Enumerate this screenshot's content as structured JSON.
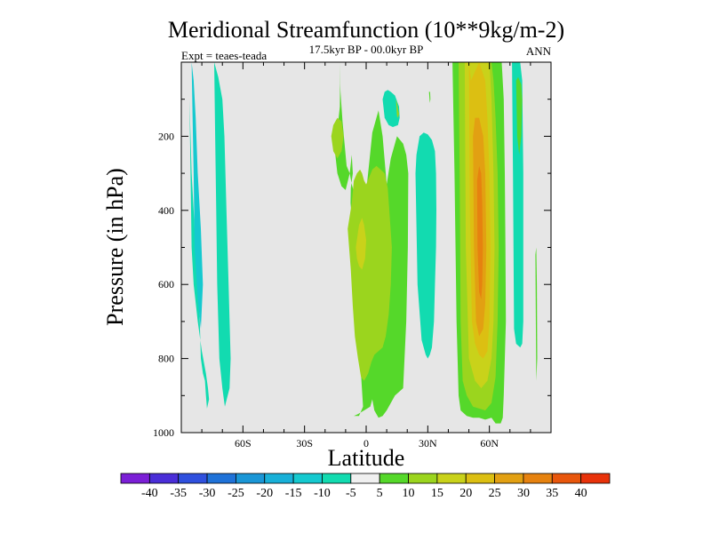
{
  "chart_data": {
    "type": "heatmap",
    "title": "Meridional Streamfunction (10**9kg/m-2)",
    "subtitle": "17.5kyr BP - 00.0kyr BP",
    "left_annotation": "Expt = teaes-teada",
    "right_annotation": "ANN",
    "xlabel": "Latitude",
    "ylabel": "Pressure (in hPa)",
    "x_range": [
      -90,
      90
    ],
    "y_range": [
      0,
      1000
    ],
    "y_reversed": true,
    "x_ticks": [
      {
        "value": -60,
        "label": "60S"
      },
      {
        "value": -30,
        "label": "30S"
      },
      {
        "value": 0,
        "label": "0"
      },
      {
        "value": 30,
        "label": "30N"
      },
      {
        "value": 60,
        "label": "60N"
      }
    ],
    "y_ticks": [
      {
        "value": 200,
        "label": "200"
      },
      {
        "value": 400,
        "label": "400"
      },
      {
        "value": 600,
        "label": "600"
      },
      {
        "value": 800,
        "label": "800"
      },
      {
        "value": 1000,
        "label": "1000"
      }
    ],
    "colorbar": {
      "boundaries": [
        "-40",
        "-35",
        "-30",
        "-25",
        "-20",
        "-15",
        "-10",
        "-5",
        "5",
        "10",
        "15",
        "20",
        "25",
        "30",
        "35",
        "40"
      ],
      "colors": [
        "#7b1fd6",
        "#4a2ed8",
        "#2f50de",
        "#1f72d8",
        "#1a96d6",
        "#18b0d8",
        "#15c9cf",
        "#12dbb0",
        "#f0f0f0",
        "#55d82a",
        "#9bd51e",
        "#c9d21a",
        "#dcbf12",
        "#e2a012",
        "#e6820f",
        "#e8560c",
        "#e8320a"
      ]
    },
    "background_color": "#e6e6e6",
    "contours": [
      {
        "level": -10,
        "color": "#12dbb0",
        "desc": "SH cell 80S-60S",
        "lat": [
          -87,
          -86,
          -85.5,
          -85,
          -84,
          -82,
          -80,
          -78,
          -77,
          -76.5,
          -77.5,
          -78,
          -78.5,
          -79.5,
          -80.5,
          -81,
          -82,
          -83,
          -84,
          -85,
          -86,
          -87
        ],
        "p": [
          0,
          100,
          300,
          500,
          600,
          700,
          780,
          840,
          880,
          910,
          935,
          900,
          860,
          840,
          800,
          700,
          600,
          500,
          400,
          300,
          100,
          0
        ]
      },
      {
        "level": -10,
        "color": "#12dbb0",
        "desc": "SH cell 70S-62S",
        "lat": [
          -74,
          -73.5,
          -73,
          -72.5,
          -72,
          -71.5,
          -70,
          -68.8,
          -68.6,
          -68.8,
          -66.5,
          -66,
          -67,
          -68,
          -69,
          -70,
          -72,
          -74
        ],
        "p": [
          0,
          200,
          400,
          600,
          700,
          800,
          880,
          930,
          955,
          930,
          880,
          800,
          600,
          400,
          200,
          100,
          40,
          0
        ]
      },
      {
        "level": -15,
        "color": "#15c9cf",
        "desc": "SH inner 80S-72S",
        "lat": [
          -85,
          -84.5,
          -84,
          -83.5,
          -82,
          -80.5,
          -79.5,
          -80.5,
          -82,
          -83,
          -84,
          -85
        ],
        "p": [
          0,
          150,
          300,
          500,
          640,
          720,
          600,
          450,
          300,
          150,
          50,
          0
        ]
      },
      {
        "level": 5,
        "color": "#55d82a",
        "desc": "Tropical cell",
        "lat": [
          -13,
          -12.7,
          -12.8,
          -13.5,
          -14,
          -14.5,
          -15,
          -14,
          -12,
          -10,
          -8,
          -7,
          -6.5,
          -7,
          -7.5,
          -7.6,
          -7.3,
          -5.5,
          -3,
          -1.5,
          -3.5,
          -6,
          -4,
          -1,
          2,
          3,
          4,
          6,
          8,
          10,
          14,
          18,
          19.5,
          20.3,
          20.5,
          19.5,
          18,
          15,
          12,
          10,
          8,
          6,
          4.5,
          3,
          1.5,
          0,
          -1.5,
          -3,
          -4.5,
          -5.5,
          -6,
          -7,
          -8,
          -9.5,
          -10.5,
          -11.5,
          -12.5,
          -13
        ],
        "p": [
          0,
          60,
          120,
          155,
          180,
          200,
          250,
          300,
          335,
          345,
          300,
          250,
          300,
          320,
          340,
          380,
          400,
          450,
          800,
          930,
          955,
          955,
          950,
          940,
          930,
          910,
          940,
          960,
          955,
          940,
          900,
          880,
          700,
          500,
          300,
          250,
          220,
          200,
          260,
          330,
          200,
          130,
          160,
          190,
          270,
          350,
          420,
          480,
          430,
          380,
          350,
          330,
          300,
          280,
          220,
          160,
          80,
          0
        ]
      },
      {
        "level": 10,
        "color": "#9bd51e",
        "desc": "Tropical inner",
        "lat": [
          -9,
          -7,
          -6,
          -4.5,
          -3,
          -2,
          -1,
          0,
          1.5,
          3,
          5,
          7,
          9,
          10.5,
          11.5,
          12.5,
          12,
          11,
          9.5,
          8,
          6,
          4,
          2.5,
          1,
          -1,
          -2.5,
          -4,
          -5.5,
          -6.5,
          -7.5,
          -9
        ],
        "p": [
          450,
          380,
          320,
          300,
          290,
          300,
          320,
          330,
          310,
          290,
          280,
          290,
          300,
          340,
          420,
          500,
          600,
          680,
          740,
          770,
          780,
          790,
          810,
          840,
          860,
          850,
          800,
          740,
          660,
          560,
          450
        ]
      },
      {
        "level": 10,
        "color": "#9bd51e",
        "desc": "Upper tropics",
        "lat": [
          -17,
          -16,
          -14,
          -12,
          -11,
          -12,
          -14,
          -16,
          -17
        ],
        "p": [
          200,
          170,
          150,
          160,
          200,
          240,
          260,
          240,
          200
        ]
      },
      {
        "level": 15,
        "color": "#c9d21a",
        "desc": "Tropical core",
        "lat": [
          -5,
          -3.5,
          -2,
          -1,
          0,
          -0.5,
          -2,
          -3.5,
          -4.5,
          -5
        ],
        "p": [
          500,
          440,
          420,
          440,
          480,
          530,
          560,
          550,
          530,
          500
        ]
      },
      {
        "level": -10,
        "color": "#12dbb0",
        "desc": "NH cell 25N-35N",
        "lat": [
          24,
          24.5,
          26,
          28,
          30,
          32,
          33.5,
          34,
          34.2,
          34,
          33.5,
          33,
          32,
          31,
          30,
          29,
          27,
          25,
          24
        ],
        "p": [
          300,
          250,
          200,
          190,
          195,
          210,
          240,
          300,
          400,
          500,
          600,
          700,
          770,
          790,
          800,
          790,
          750,
          600,
          300
        ]
      },
      {
        "level": -10,
        "color": "#12dbb0",
        "desc": "Small upper cell",
        "lat": [
          8,
          9,
          10.5,
          12,
          14,
          16,
          16.3,
          15.5,
          13,
          11,
          9,
          8
        ],
        "p": [
          100,
          80,
          75,
          80,
          90,
          120,
          150,
          170,
          175,
          170,
          150,
          100
        ]
      },
      {
        "level": 5,
        "color": "#55d82a",
        "desc": "NH midlat cell",
        "lat": [
          42,
          43,
          47,
          49,
          51,
          52,
          55,
          56,
          58,
          60,
          62,
          64,
          66,
          67,
          67.5,
          67.8,
          68,
          67.5,
          67,
          66.5,
          65.5,
          63,
          61,
          58,
          55,
          52,
          49,
          46,
          45,
          44,
          43,
          42
        ],
        "p": [
          0,
          -20,
          -20,
          0,
          0,
          -20,
          -20,
          0,
          0,
          -20,
          -20,
          0,
          0,
          100,
          300,
          500,
          700,
          800,
          900,
          960,
          975,
          975,
          960,
          965,
          960,
          960,
          955,
          940,
          900,
          700,
          300,
          0
        ]
      },
      {
        "level": 10,
        "color": "#9bd51e",
        "desc": "NH midlat 10",
        "lat": [
          45,
          46,
          48,
          50,
          54,
          58,
          61,
          62,
          63,
          64,
          64.5,
          64,
          63,
          61,
          58,
          55,
          52,
          49,
          47,
          46,
          45.5,
          45
        ],
        "p": [
          0,
          -20,
          -20,
          0,
          0,
          0,
          0,
          50,
          150,
          300,
          500,
          700,
          850,
          920,
          940,
          935,
          930,
          900,
          860,
          700,
          300,
          0
        ]
      },
      {
        "level": 15,
        "color": "#c9d21a",
        "desc": "NH midlat 15",
        "lat": [
          48,
          49,
          53,
          57,
          60,
          61,
          62,
          62.5,
          62,
          61,
          59,
          56,
          53,
          50,
          48.5,
          48
        ],
        "p": [
          0,
          -20,
          0,
          -20,
          0,
          100,
          300,
          500,
          700,
          800,
          860,
          880,
          860,
          800,
          500,
          0
        ]
      },
      {
        "level": 20,
        "color": "#dcbf12",
        "desc": "NH midlat 20",
        "lat": [
          50,
          51,
          55,
          58,
          59,
          60,
          60.5,
          60,
          59,
          57,
          55,
          53,
          51.5,
          50.5,
          50
        ],
        "p": [
          0,
          50,
          0,
          50,
          150,
          300,
          500,
          700,
          780,
          800,
          790,
          760,
          700,
          400,
          0
        ]
      },
      {
        "level": 25,
        "color": "#e2a012",
        "desc": "NH midlat 25",
        "lat": [
          52,
          53,
          55,
          57,
          58,
          58.5,
          58,
          57,
          55,
          53.5,
          52.5,
          52
        ],
        "p": [
          200,
          150,
          150,
          200,
          300,
          500,
          650,
          720,
          740,
          700,
          500,
          200
        ]
      },
      {
        "level": 30,
        "color": "#e6820f",
        "desc": "NH midlat 30",
        "lat": [
          54,
          55,
          56,
          56.5,
          56.8,
          56.5,
          56,
          55,
          54.2,
          54
        ],
        "p": [
          320,
          280,
          300,
          380,
          500,
          600,
          640,
          620,
          500,
          320
        ]
      },
      {
        "level": 5,
        "color": "#55d82a",
        "desc": "Small dot",
        "lat": [
          30.6,
          31.1,
          31.3,
          31,
          30.6
        ],
        "p": [
          80,
          80,
          100,
          110,
          80
        ]
      },
      {
        "level": 10,
        "color": "#9bd51e",
        "desc": "Upper cell 10",
        "lat": [
          14.5,
          15,
          15.5,
          16,
          15.5,
          15,
          14.5
        ],
        "p": [
          100,
          110,
          125,
          140,
          150,
          145,
          100
        ]
      },
      {
        "level": -5,
        "color": "#12dbb0",
        "desc": "NH polar cell",
        "lat": [
          71,
          72,
          74,
          75,
          76,
          76.5,
          76.5,
          76,
          75,
          73,
          72,
          71.5,
          71
        ],
        "p": [
          0,
          -20,
          -20,
          0,
          50,
          300,
          700,
          760,
          770,
          760,
          720,
          300,
          0
        ]
      },
      {
        "level": 5,
        "color": "#55d82a",
        "desc": "NH polar green",
        "lat": [
          73,
          74,
          75.5,
          76,
          75.5,
          74.5,
          73.5,
          73
        ],
        "p": [
          50,
          40,
          60,
          100,
          200,
          250,
          200,
          50
        ]
      },
      {
        "level": 5,
        "color": "#55d82a",
        "desc": "NH small far green",
        "lat": [
          82.4,
          82.8,
          83.1,
          83.3,
          82.8,
          82.4
        ],
        "p": [
          520,
          500,
          600,
          800,
          860,
          520
        ]
      }
    ]
  }
}
